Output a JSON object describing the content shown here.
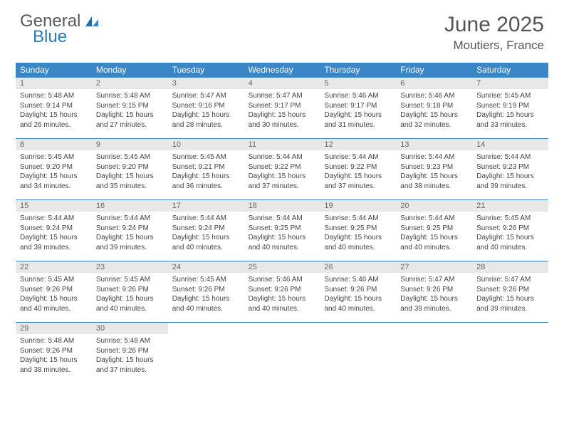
{
  "logo": {
    "word1": "General",
    "word2": "Blue"
  },
  "title": "June 2025",
  "location": "Moutiers, France",
  "header_bg": "#3a87c8",
  "day_num_bg": "#e8e8e8",
  "border_color": "#3a87c8",
  "day_headers": [
    "Sunday",
    "Monday",
    "Tuesday",
    "Wednesday",
    "Thursday",
    "Friday",
    "Saturday"
  ],
  "days": [
    {
      "n": "1",
      "sr": "5:48 AM",
      "ss": "9:14 PM",
      "dl": "15 hours and 26 minutes."
    },
    {
      "n": "2",
      "sr": "5:48 AM",
      "ss": "9:15 PM",
      "dl": "15 hours and 27 minutes."
    },
    {
      "n": "3",
      "sr": "5:47 AM",
      "ss": "9:16 PM",
      "dl": "15 hours and 28 minutes."
    },
    {
      "n": "4",
      "sr": "5:47 AM",
      "ss": "9:17 PM",
      "dl": "15 hours and 30 minutes."
    },
    {
      "n": "5",
      "sr": "5:46 AM",
      "ss": "9:17 PM",
      "dl": "15 hours and 31 minutes."
    },
    {
      "n": "6",
      "sr": "5:46 AM",
      "ss": "9:18 PM",
      "dl": "15 hours and 32 minutes."
    },
    {
      "n": "7",
      "sr": "5:45 AM",
      "ss": "9:19 PM",
      "dl": "15 hours and 33 minutes."
    },
    {
      "n": "8",
      "sr": "5:45 AM",
      "ss": "9:20 PM",
      "dl": "15 hours and 34 minutes."
    },
    {
      "n": "9",
      "sr": "5:45 AM",
      "ss": "9:20 PM",
      "dl": "15 hours and 35 minutes."
    },
    {
      "n": "10",
      "sr": "5:45 AM",
      "ss": "9:21 PM",
      "dl": "15 hours and 36 minutes."
    },
    {
      "n": "11",
      "sr": "5:44 AM",
      "ss": "9:22 PM",
      "dl": "15 hours and 37 minutes."
    },
    {
      "n": "12",
      "sr": "5:44 AM",
      "ss": "9:22 PM",
      "dl": "15 hours and 37 minutes."
    },
    {
      "n": "13",
      "sr": "5:44 AM",
      "ss": "9:23 PM",
      "dl": "15 hours and 38 minutes."
    },
    {
      "n": "14",
      "sr": "5:44 AM",
      "ss": "9:23 PM",
      "dl": "15 hours and 39 minutes."
    },
    {
      "n": "15",
      "sr": "5:44 AM",
      "ss": "9:24 PM",
      "dl": "15 hours and 39 minutes."
    },
    {
      "n": "16",
      "sr": "5:44 AM",
      "ss": "9:24 PM",
      "dl": "15 hours and 39 minutes."
    },
    {
      "n": "17",
      "sr": "5:44 AM",
      "ss": "9:24 PM",
      "dl": "15 hours and 40 minutes."
    },
    {
      "n": "18",
      "sr": "5:44 AM",
      "ss": "9:25 PM",
      "dl": "15 hours and 40 minutes."
    },
    {
      "n": "19",
      "sr": "5:44 AM",
      "ss": "9:25 PM",
      "dl": "15 hours and 40 minutes."
    },
    {
      "n": "20",
      "sr": "5:44 AM",
      "ss": "9:25 PM",
      "dl": "15 hours and 40 minutes."
    },
    {
      "n": "21",
      "sr": "5:45 AM",
      "ss": "9:26 PM",
      "dl": "15 hours and 40 minutes."
    },
    {
      "n": "22",
      "sr": "5:45 AM",
      "ss": "9:26 PM",
      "dl": "15 hours and 40 minutes."
    },
    {
      "n": "23",
      "sr": "5:45 AM",
      "ss": "9:26 PM",
      "dl": "15 hours and 40 minutes."
    },
    {
      "n": "24",
      "sr": "5:45 AM",
      "ss": "9:26 PM",
      "dl": "15 hours and 40 minutes."
    },
    {
      "n": "25",
      "sr": "5:46 AM",
      "ss": "9:26 PM",
      "dl": "15 hours and 40 minutes."
    },
    {
      "n": "26",
      "sr": "5:46 AM",
      "ss": "9:26 PM",
      "dl": "15 hours and 40 minutes."
    },
    {
      "n": "27",
      "sr": "5:47 AM",
      "ss": "9:26 PM",
      "dl": "15 hours and 39 minutes."
    },
    {
      "n": "28",
      "sr": "5:47 AM",
      "ss": "9:26 PM",
      "dl": "15 hours and 39 minutes."
    },
    {
      "n": "29",
      "sr": "5:48 AM",
      "ss": "9:26 PM",
      "dl": "15 hours and 38 minutes."
    },
    {
      "n": "30",
      "sr": "5:48 AM",
      "ss": "9:26 PM",
      "dl": "15 hours and 37 minutes."
    }
  ],
  "labels": {
    "sunrise": "Sunrise:",
    "sunset": "Sunset:",
    "daylight": "Daylight:"
  }
}
